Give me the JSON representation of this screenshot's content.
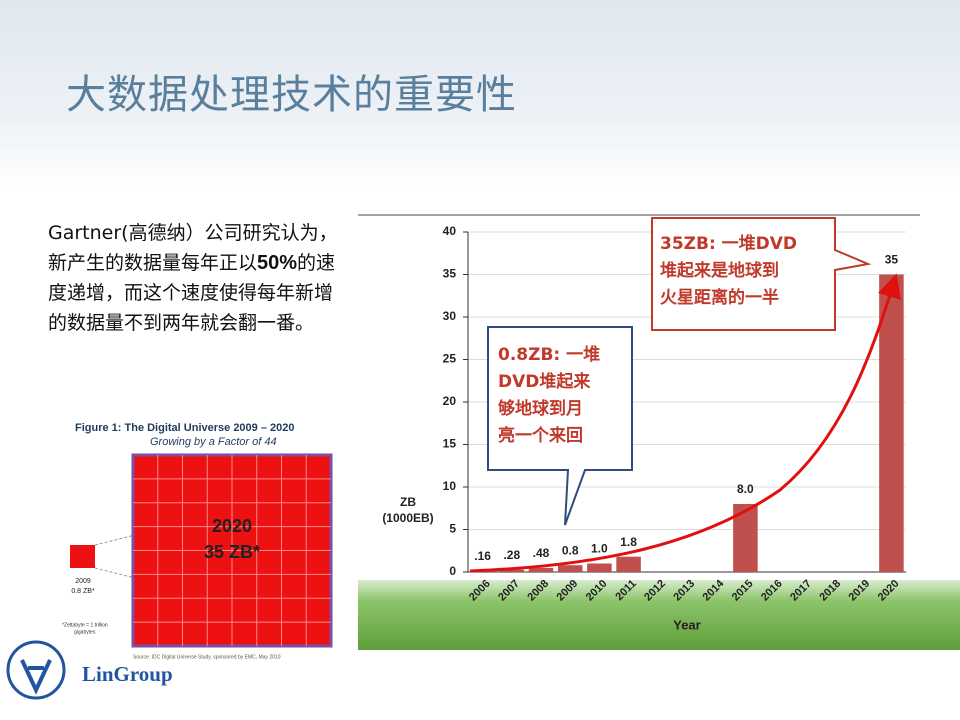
{
  "title": "大数据处理技术的重要性",
  "body": {
    "before": "Gartner(高德纳）公司研究认为，新产生的数据量每年正以",
    "bold": "50%",
    "after": "的速度递增，而这个速度使得每年新增的数据量不到两年就会翻一番。"
  },
  "figure": {
    "title": "Figure 1:  The Digital Universe 2009 – 2020",
    "subtitle": "Growing by a Factor of 44",
    "big_year": "2020",
    "big_value": "35 ZB*",
    "small_year": "2009",
    "small_value": "0.8 ZB*",
    "note": [
      "*Zettabyte = 1 trillion",
      "gigabytes"
    ],
    "source": "Source: IDC Digital Universe Study, sponsored by EMC, May 2010"
  },
  "logo": "LinGroup",
  "chart_data": {
    "type": "bar",
    "categories": [
      "2006",
      "2007",
      "2008",
      "2009",
      "2010",
      "2011",
      "2012",
      "2013",
      "2014",
      "2015",
      "2016",
      "2017",
      "2018",
      "2019",
      "2020"
    ],
    "values": [
      0.16,
      0.28,
      0.48,
      0.8,
      1.0,
      1.8,
      null,
      null,
      null,
      8.0,
      null,
      null,
      null,
      null,
      35
    ],
    "value_labels": [
      ".16",
      ".28",
      ".48",
      "0.8",
      "1.0",
      "1.8",
      null,
      null,
      null,
      "8.0",
      null,
      null,
      null,
      null,
      "35"
    ],
    "color": "#c0504d",
    "ylim": [
      0,
      40
    ],
    "yticks": [
      0,
      5,
      10,
      15,
      20,
      25,
      30,
      35,
      40
    ],
    "y_label": [
      "ZB",
      "(1000EB)"
    ],
    "x_label": "Year",
    "annotations": [
      {
        "lines": [
          "35ZB: 一堆DVD",
          "堆起来是地球到",
          "火星距离的一半"
        ]
      },
      {
        "lines": [
          "0.8ZB: 一堆",
          "DVD堆起来",
          "够地球到月",
          "亮一个来回"
        ]
      }
    ]
  }
}
